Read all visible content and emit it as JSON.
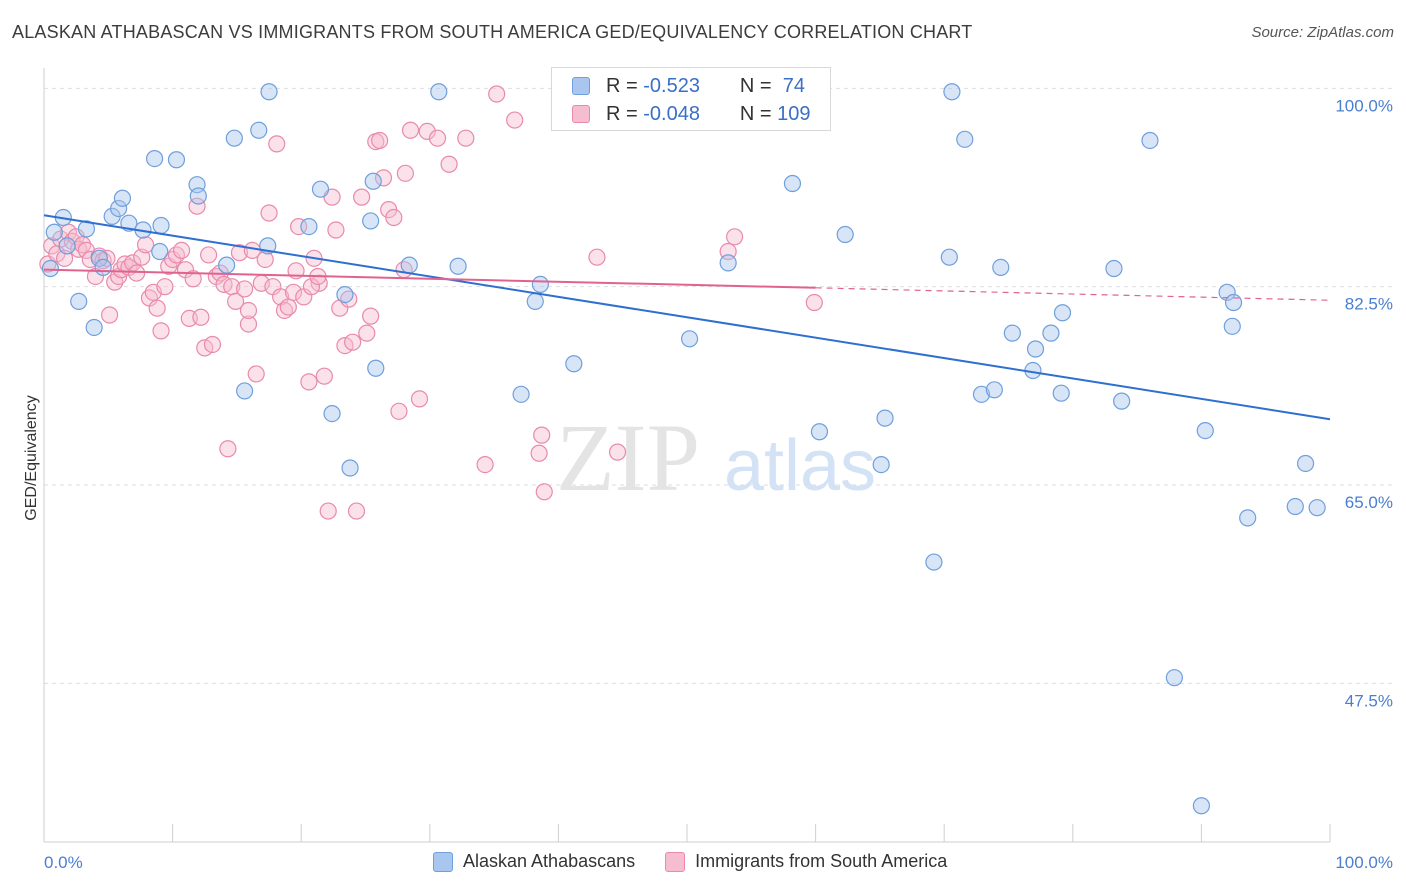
{
  "title": "ALASKAN ATHABASCAN VS IMMIGRANTS FROM SOUTH AMERICA GED/EQUIVALENCY CORRELATION CHART",
  "source": "Source: ZipAtlas.com",
  "watermark": {
    "zip": "ZIP",
    "atlas": "atlas"
  },
  "colors": {
    "blue_fill": "#a9c6ee",
    "blue_stroke": "#6f9fdc",
    "blue_line": "#2e6fd0",
    "pink_fill": "#f6bccf",
    "pink_stroke": "#e98aab",
    "pink_line": "#e0638f",
    "grid": "#dedede",
    "tick_text": "#4a7fd0"
  },
  "legend_top": {
    "rows": [
      {
        "r_label": "R =",
        "r_value": "-0.523",
        "n_label": "N =",
        "n_value": "74"
      },
      {
        "r_label": "R =",
        "r_value": "-0.048",
        "n_label": "N =",
        "n_value": "109"
      }
    ]
  },
  "legend_bottom": [
    "Alaskan Athabascans",
    "Immigrants from South America"
  ],
  "chart_data": {
    "type": "scatter",
    "xlabel": "",
    "ylabel": "GED/Equivalency",
    "x_tick_labels": [
      "0.0%",
      "100.0%"
    ],
    "y_tick_labels": [
      "100.0%",
      "82.5%",
      "65.0%",
      "47.5%"
    ],
    "y_ticks": [
      100.0,
      82.5,
      65.0,
      47.5
    ],
    "xlim": [
      0,
      100
    ],
    "ylim": [
      33.5,
      102.5
    ],
    "grid": true,
    "series": [
      {
        "name": "Alaskan Athabascans",
        "r": -0.523,
        "n": 74,
        "trend": {
          "x": [
            0,
            100
          ],
          "y": [
            88.8,
            70.8
          ]
        },
        "points": [
          [
            0.5,
            84.1
          ],
          [
            0.8,
            87.3
          ],
          [
            1.5,
            88.6
          ],
          [
            1.8,
            86.1
          ],
          [
            2.7,
            81.2
          ],
          [
            3.3,
            87.6
          ],
          [
            3.9,
            78.9
          ],
          [
            4.3,
            85.0
          ],
          [
            4.6,
            84.2
          ],
          [
            5.3,
            88.7
          ],
          [
            5.8,
            89.4
          ],
          [
            6.1,
            90.3
          ],
          [
            6.6,
            88.1
          ],
          [
            7.7,
            87.5
          ],
          [
            8.6,
            93.8
          ],
          [
            9.0,
            85.6
          ],
          [
            9.1,
            87.9
          ],
          [
            10.3,
            93.7
          ],
          [
            11.9,
            91.5
          ],
          [
            12.0,
            90.5
          ],
          [
            14.2,
            84.4
          ],
          [
            14.8,
            95.6
          ],
          [
            15.6,
            73.3
          ],
          [
            16.7,
            96.3
          ],
          [
            17.4,
            86.1
          ],
          [
            17.5,
            99.7
          ],
          [
            20.6,
            87.8
          ],
          [
            21.5,
            91.1
          ],
          [
            22.4,
            71.3
          ],
          [
            23.4,
            81.8
          ],
          [
            23.8,
            66.5
          ],
          [
            25.4,
            88.3
          ],
          [
            25.6,
            91.8
          ],
          [
            25.8,
            75.3
          ],
          [
            28.4,
            84.4
          ],
          [
            30.7,
            99.7
          ],
          [
            32.2,
            84.3
          ],
          [
            37.1,
            73.0
          ],
          [
            38.2,
            81.2
          ],
          [
            38.6,
            82.7
          ],
          [
            41.2,
            75.7
          ],
          [
            50.2,
            77.9
          ],
          [
            53.2,
            84.6
          ],
          [
            58.2,
            91.6
          ],
          [
            60.3,
            69.7
          ],
          [
            62.3,
            87.1
          ],
          [
            65.1,
            66.8
          ],
          [
            65.4,
            70.9
          ],
          [
            69.2,
            58.2
          ],
          [
            70.4,
            85.1
          ],
          [
            70.6,
            99.7
          ],
          [
            71.6,
            95.5
          ],
          [
            72.9,
            73.0
          ],
          [
            73.9,
            73.4
          ],
          [
            74.4,
            84.2
          ],
          [
            75.3,
            78.4
          ],
          [
            77.1,
            77.0
          ],
          [
            76.9,
            75.1
          ],
          [
            78.3,
            78.4
          ],
          [
            79.1,
            73.1
          ],
          [
            79.2,
            80.2
          ],
          [
            83.8,
            72.4
          ],
          [
            83.2,
            84.1
          ],
          [
            86.0,
            95.4
          ],
          [
            87.9,
            48.0
          ],
          [
            92.0,
            82.0
          ],
          [
            92.4,
            79.0
          ],
          [
            90.0,
            36.7
          ],
          [
            90.3,
            69.8
          ],
          [
            92.5,
            81.1
          ],
          [
            93.6,
            62.1
          ],
          [
            97.3,
            63.1
          ],
          [
            98.1,
            66.9
          ],
          [
            99.0,
            63.0
          ]
        ]
      },
      {
        "name": "Immigrants from South America",
        "r": -0.048,
        "n": 109,
        "trend": {
          "x": [
            0,
            60
          ],
          "y": [
            84.0,
            82.4
          ]
        },
        "trend_dashed": {
          "x": [
            60,
            100
          ],
          "y": [
            82.4,
            81.3
          ]
        },
        "points": [
          [
            0.3,
            84.5
          ],
          [
            0.6,
            86.1
          ],
          [
            1.0,
            85.4
          ],
          [
            1.3,
            86.7
          ],
          [
            1.6,
            85.0
          ],
          [
            1.9,
            87.3
          ],
          [
            2.2,
            86.5
          ],
          [
            2.5,
            86.9
          ],
          [
            2.7,
            85.8
          ],
          [
            3.0,
            86.2
          ],
          [
            3.3,
            85.7
          ],
          [
            3.6,
            84.9
          ],
          [
            4.0,
            83.4
          ],
          [
            4.3,
            85.2
          ],
          [
            4.6,
            84.8
          ],
          [
            4.9,
            85.0
          ],
          [
            5.1,
            80.0
          ],
          [
            5.5,
            82.9
          ],
          [
            5.8,
            83.4
          ],
          [
            6.0,
            84.0
          ],
          [
            6.3,
            84.5
          ],
          [
            6.6,
            84.2
          ],
          [
            6.9,
            84.6
          ],
          [
            7.2,
            83.7
          ],
          [
            7.6,
            85.1
          ],
          [
            7.9,
            86.2
          ],
          [
            8.2,
            81.5
          ],
          [
            8.5,
            82.0
          ],
          [
            8.8,
            80.6
          ],
          [
            9.1,
            78.6
          ],
          [
            9.4,
            82.5
          ],
          [
            9.7,
            84.3
          ],
          [
            10.0,
            84.9
          ],
          [
            10.3,
            85.3
          ],
          [
            10.7,
            85.7
          ],
          [
            11.0,
            84.0
          ],
          [
            11.3,
            79.7
          ],
          [
            11.6,
            83.2
          ],
          [
            11.9,
            89.6
          ],
          [
            12.2,
            79.8
          ],
          [
            12.5,
            77.1
          ],
          [
            12.8,
            85.3
          ],
          [
            13.1,
            77.4
          ],
          [
            13.4,
            83.4
          ],
          [
            13.7,
            83.7
          ],
          [
            14.0,
            82.7
          ],
          [
            14.3,
            68.2
          ],
          [
            14.6,
            82.5
          ],
          [
            14.9,
            81.2
          ],
          [
            15.2,
            85.5
          ],
          [
            15.6,
            82.3
          ],
          [
            15.9,
            79.2
          ],
          [
            16.2,
            85.7
          ],
          [
            16.5,
            74.8
          ],
          [
            16.9,
            82.8
          ],
          [
            17.2,
            84.9
          ],
          [
            17.5,
            89.0
          ],
          [
            17.8,
            82.5
          ],
          [
            18.1,
            95.1
          ],
          [
            18.4,
            81.6
          ],
          [
            18.7,
            80.4
          ],
          [
            19.0,
            80.7
          ],
          [
            19.4,
            82.0
          ],
          [
            19.8,
            87.8
          ],
          [
            20.2,
            81.6
          ],
          [
            20.6,
            74.1
          ],
          [
            21.0,
            85.0
          ],
          [
            21.4,
            82.8
          ],
          [
            21.8,
            74.6
          ],
          [
            22.1,
            62.7
          ],
          [
            22.4,
            90.4
          ],
          [
            22.7,
            87.5
          ],
          [
            23.0,
            80.6
          ],
          [
            23.4,
            77.3
          ],
          [
            23.7,
            81.4
          ],
          [
            24.0,
            77.6
          ],
          [
            24.3,
            62.7
          ],
          [
            24.7,
            90.4
          ],
          [
            25.1,
            78.4
          ],
          [
            25.4,
            79.9
          ],
          [
            25.8,
            95.3
          ],
          [
            26.1,
            95.4
          ],
          [
            26.4,
            92.1
          ],
          [
            26.8,
            89.3
          ],
          [
            27.2,
            88.6
          ],
          [
            27.6,
            71.5
          ],
          [
            28.1,
            92.5
          ],
          [
            28.5,
            96.3
          ],
          [
            29.2,
            72.6
          ],
          [
            29.8,
            96.2
          ],
          [
            30.6,
            95.6
          ],
          [
            31.5,
            93.3
          ],
          [
            32.8,
            95.6
          ],
          [
            34.3,
            66.8
          ],
          [
            35.2,
            99.5
          ],
          [
            36.6,
            97.2
          ],
          [
            38.5,
            67.8
          ],
          [
            38.7,
            69.4
          ],
          [
            38.9,
            64.4
          ],
          [
            43.0,
            85.1
          ],
          [
            44.6,
            67.9
          ],
          [
            53.2,
            85.6
          ],
          [
            53.7,
            86.9
          ],
          [
            59.9,
            81.1
          ],
          [
            19.6,
            83.9
          ],
          [
            20.8,
            82.5
          ],
          [
            28.0,
            84.0
          ],
          [
            15.9,
            80.4
          ],
          [
            21.3,
            83.4
          ]
        ]
      }
    ]
  }
}
